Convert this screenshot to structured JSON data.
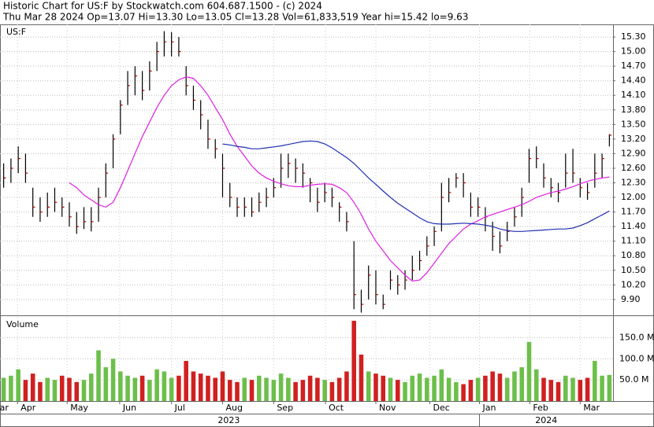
{
  "chart_data": {
    "type": "ohlc",
    "title": "Historic Chart for US:F by Stockwatch.com 604.687.1500 - (c) 2024",
    "subtitle": "Thu Mar 28 2024   Op=13.07  Hi=13.30  Lo=13.05  Cl=13.28  Vol=61,833,519  Year hi=15.42  lo=9.63",
    "symbol": "US:F",
    "volume_label": "Volume",
    "xlim": [
      0,
      84
    ],
    "xticks": [
      {
        "value": -1.5,
        "label": "Mar"
      },
      {
        "value": 2.4,
        "label": "Apr"
      },
      {
        "value": 9.2,
        "label": "May"
      },
      {
        "value": 16.4,
        "label": "Jun"
      },
      {
        "value": 23.5,
        "label": "Jul"
      },
      {
        "value": 30.5,
        "label": "Aug"
      },
      {
        "value": 37.5,
        "label": "Sep"
      },
      {
        "value": 44.6,
        "label": "Oct"
      },
      {
        "value": 51.5,
        "label": "Nov"
      },
      {
        "value": 58.9,
        "label": "Dec"
      },
      {
        "value": 65.7,
        "label": "Jan"
      },
      {
        "value": 72.6,
        "label": "Feb"
      },
      {
        "value": 79.5,
        "label": "Mar"
      }
    ],
    "year_ticks": [
      {
        "value": -3,
        "label": "2023"
      },
      {
        "value": 65.7,
        "label": "2024"
      }
    ],
    "ylim": [
      9.59,
      15.56
    ],
    "yticks": [
      {
        "value": 9.9,
        "label": "9.90"
      },
      {
        "value": 10.2,
        "label": "10.20"
      },
      {
        "value": 10.5,
        "label": "10.50"
      },
      {
        "value": 10.8,
        "label": "10.80"
      },
      {
        "value": 11.1,
        "label": "11.10"
      },
      {
        "value": 11.4,
        "label": "11.40"
      },
      {
        "value": 11.7,
        "label": "11.70"
      },
      {
        "value": 12.0,
        "label": "12.00"
      },
      {
        "value": 12.3,
        "label": "12.30"
      },
      {
        "value": 12.6,
        "label": "12.60"
      },
      {
        "value": 12.9,
        "label": "12.90"
      },
      {
        "value": 13.2,
        "label": "13.20"
      },
      {
        "value": 13.5,
        "label": "13.50"
      },
      {
        "value": 13.8,
        "label": "13.80"
      },
      {
        "value": 14.1,
        "label": "14.10"
      },
      {
        "value": 14.4,
        "label": "14.40"
      },
      {
        "value": 14.7,
        "label": "14.70"
      },
      {
        "value": 15.0,
        "label": "15.00"
      },
      {
        "value": 15.3,
        "label": "15.30"
      }
    ],
    "grid": true,
    "bar_color": "#000000",
    "close_color": "#b00000",
    "high": [
      12.7,
      12.8,
      13.05,
      12.9,
      12.2,
      12.0,
      12.1,
      12.2,
      12.0,
      11.9,
      11.7,
      11.8,
      11.8,
      12.2,
      12.7,
      13.3,
      14.0,
      14.6,
      14.7,
      14.6,
      14.8,
      15.2,
      15.42,
      15.4,
      15.3,
      14.7,
      14.3,
      14.0,
      13.6,
      13.2,
      12.9,
      12.3,
      12.0,
      12.0,
      12.0,
      12.1,
      12.2,
      12.4,
      12.9,
      12.9,
      12.8,
      12.7,
      12.4,
      12.2,
      12.3,
      12.2,
      11.9,
      11.7,
      11.1,
      10.1,
      10.6,
      10.5,
      10.0,
      10.5,
      10.4,
      10.5,
      10.8,
      10.9,
      11.2,
      11.4,
      12.3,
      12.4,
      12.5,
      12.5,
      12.1,
      12.0,
      11.8,
      11.5,
      11.3,
      11.5,
      11.8,
      12.2,
      13.0,
      13.05,
      12.7,
      12.4,
      12.3,
      12.9,
      13.0,
      12.4,
      12.3,
      12.9,
      12.9,
      13.3
    ],
    "low": [
      12.2,
      12.3,
      12.5,
      12.3,
      11.6,
      11.5,
      11.6,
      11.7,
      11.6,
      11.4,
      11.25,
      11.35,
      11.3,
      11.5,
      12.0,
      12.6,
      13.3,
      13.9,
      14.1,
      14.0,
      14.2,
      14.6,
      14.9,
      14.9,
      14.9,
      14.1,
      13.8,
      13.4,
      13.0,
      12.8,
      12.0,
      11.8,
      11.6,
      11.6,
      11.6,
      11.7,
      11.8,
      12.0,
      12.2,
      12.4,
      12.3,
      12.2,
      11.9,
      11.7,
      11.9,
      11.8,
      11.5,
      11.3,
      9.7,
      9.63,
      9.9,
      9.8,
      9.7,
      10.1,
      10.0,
      10.1,
      10.3,
      10.5,
      10.8,
      11.0,
      11.3,
      11.9,
      12.2,
      12.0,
      11.6,
      11.6,
      11.3,
      10.9,
      10.85,
      11.1,
      11.4,
      11.6,
      12.3,
      12.6,
      12.2,
      12.0,
      11.9,
      12.2,
      12.3,
      12.0,
      11.95,
      12.2,
      12.4,
      13.05
    ],
    "close": [
      12.4,
      12.6,
      12.8,
      12.5,
      11.8,
      11.7,
      11.8,
      11.9,
      11.8,
      11.6,
      11.4,
      11.5,
      11.5,
      12.0,
      12.5,
      13.2,
      13.9,
      14.3,
      14.5,
      14.2,
      14.6,
      15.0,
      15.2,
      15.2,
      15.0,
      14.3,
      14.0,
      13.7,
      13.2,
      13.0,
      12.6,
      12.0,
      11.8,
      11.8,
      11.7,
      11.9,
      12.0,
      12.2,
      12.6,
      12.7,
      12.6,
      12.5,
      12.3,
      11.9,
      12.1,
      12.0,
      11.8,
      11.5,
      10.0,
      9.8,
      10.4,
      10.0,
      9.8,
      10.3,
      10.2,
      10.3,
      10.5,
      10.7,
      11.0,
      11.3,
      12.0,
      12.1,
      12.4,
      12.3,
      11.8,
      11.8,
      11.6,
      11.2,
      11.0,
      11.3,
      11.6,
      12.0,
      12.8,
      12.8,
      12.4,
      12.2,
      12.1,
      12.5,
      12.5,
      12.2,
      12.1,
      12.5,
      12.8,
      13.28
    ],
    "series": [
      {
        "color": "#e020e0",
        "values": [
          null,
          null,
          null,
          null,
          null,
          null,
          null,
          null,
          null,
          12.3,
          12.2,
          12.05,
          11.95,
          11.85,
          11.8,
          11.9,
          12.2,
          12.55,
          12.9,
          13.25,
          13.55,
          13.85,
          14.1,
          14.3,
          14.42,
          14.48,
          14.45,
          14.3,
          14.1,
          13.85,
          13.6,
          13.3,
          13.05,
          12.85,
          12.65,
          12.5,
          12.4,
          12.33,
          12.28,
          12.24,
          12.22,
          12.22,
          12.25,
          12.27,
          12.28,
          12.27,
          12.2,
          12.1,
          11.9,
          11.65,
          11.35,
          11.1,
          10.9,
          10.7,
          10.55,
          10.4,
          10.28,
          10.3,
          10.45,
          10.65,
          10.85,
          11.05,
          11.2,
          11.35,
          11.45,
          11.52,
          11.6,
          11.65,
          11.7,
          11.75,
          11.8,
          11.85,
          11.92,
          12.0,
          12.05,
          12.1,
          12.13,
          12.17,
          12.22,
          12.28,
          12.33,
          12.37,
          12.4,
          12.42
        ]
      },
      {
        "color": "#2030b0",
        "values": [
          null,
          null,
          null,
          null,
          null,
          null,
          null,
          null,
          null,
          null,
          null,
          null,
          null,
          null,
          null,
          null,
          null,
          null,
          null,
          null,
          null,
          null,
          null,
          null,
          null,
          null,
          null,
          null,
          null,
          null,
          13.1,
          13.08,
          13.05,
          13.03,
          13.0,
          13.0,
          13.02,
          13.04,
          13.06,
          13.09,
          13.12,
          13.15,
          13.16,
          13.15,
          13.1,
          13.02,
          12.92,
          12.82,
          12.7,
          12.55,
          12.4,
          12.27,
          12.13,
          12.0,
          11.88,
          11.78,
          11.68,
          11.58,
          11.5,
          11.46,
          11.45,
          11.45,
          11.46,
          11.47,
          11.46,
          11.45,
          11.43,
          11.4,
          11.35,
          11.32,
          11.3,
          11.3,
          11.31,
          11.32,
          11.33,
          11.34,
          11.35,
          11.35,
          11.37,
          11.42,
          11.48,
          11.56,
          11.64,
          11.72
        ]
      }
    ],
    "volume": [
      55,
      60,
      75,
      50,
      65,
      45,
      55,
      50,
      60,
      55,
      45,
      50,
      65,
      120,
      80,
      100,
      70,
      60,
      55,
      60,
      50,
      75,
      70,
      55,
      60,
      95,
      70,
      65,
      60,
      55,
      70,
      50,
      45,
      55,
      50,
      60,
      55,
      50,
      65,
      55,
      45,
      50,
      60,
      55,
      50,
      45,
      55,
      70,
      190,
      110,
      70,
      65,
      60,
      55,
      50,
      45,
      60,
      65,
      55,
      60,
      75,
      55,
      45,
      40,
      50,
      55,
      60,
      70,
      65,
      55,
      70,
      80,
      140,
      75,
      55,
      50,
      45,
      60,
      55,
      50,
      55,
      95,
      60,
      61.833519
    ],
    "up_color": "#6cbf4a",
    "down_color": "#d02020",
    "vlim": [
      0,
      201
    ],
    "vticks": [
      {
        "value": 50,
        "label": "50.0 M"
      },
      {
        "value": 100,
        "label": "100.0 M"
      },
      {
        "value": 150,
        "label": "150.0 M"
      }
    ]
  }
}
